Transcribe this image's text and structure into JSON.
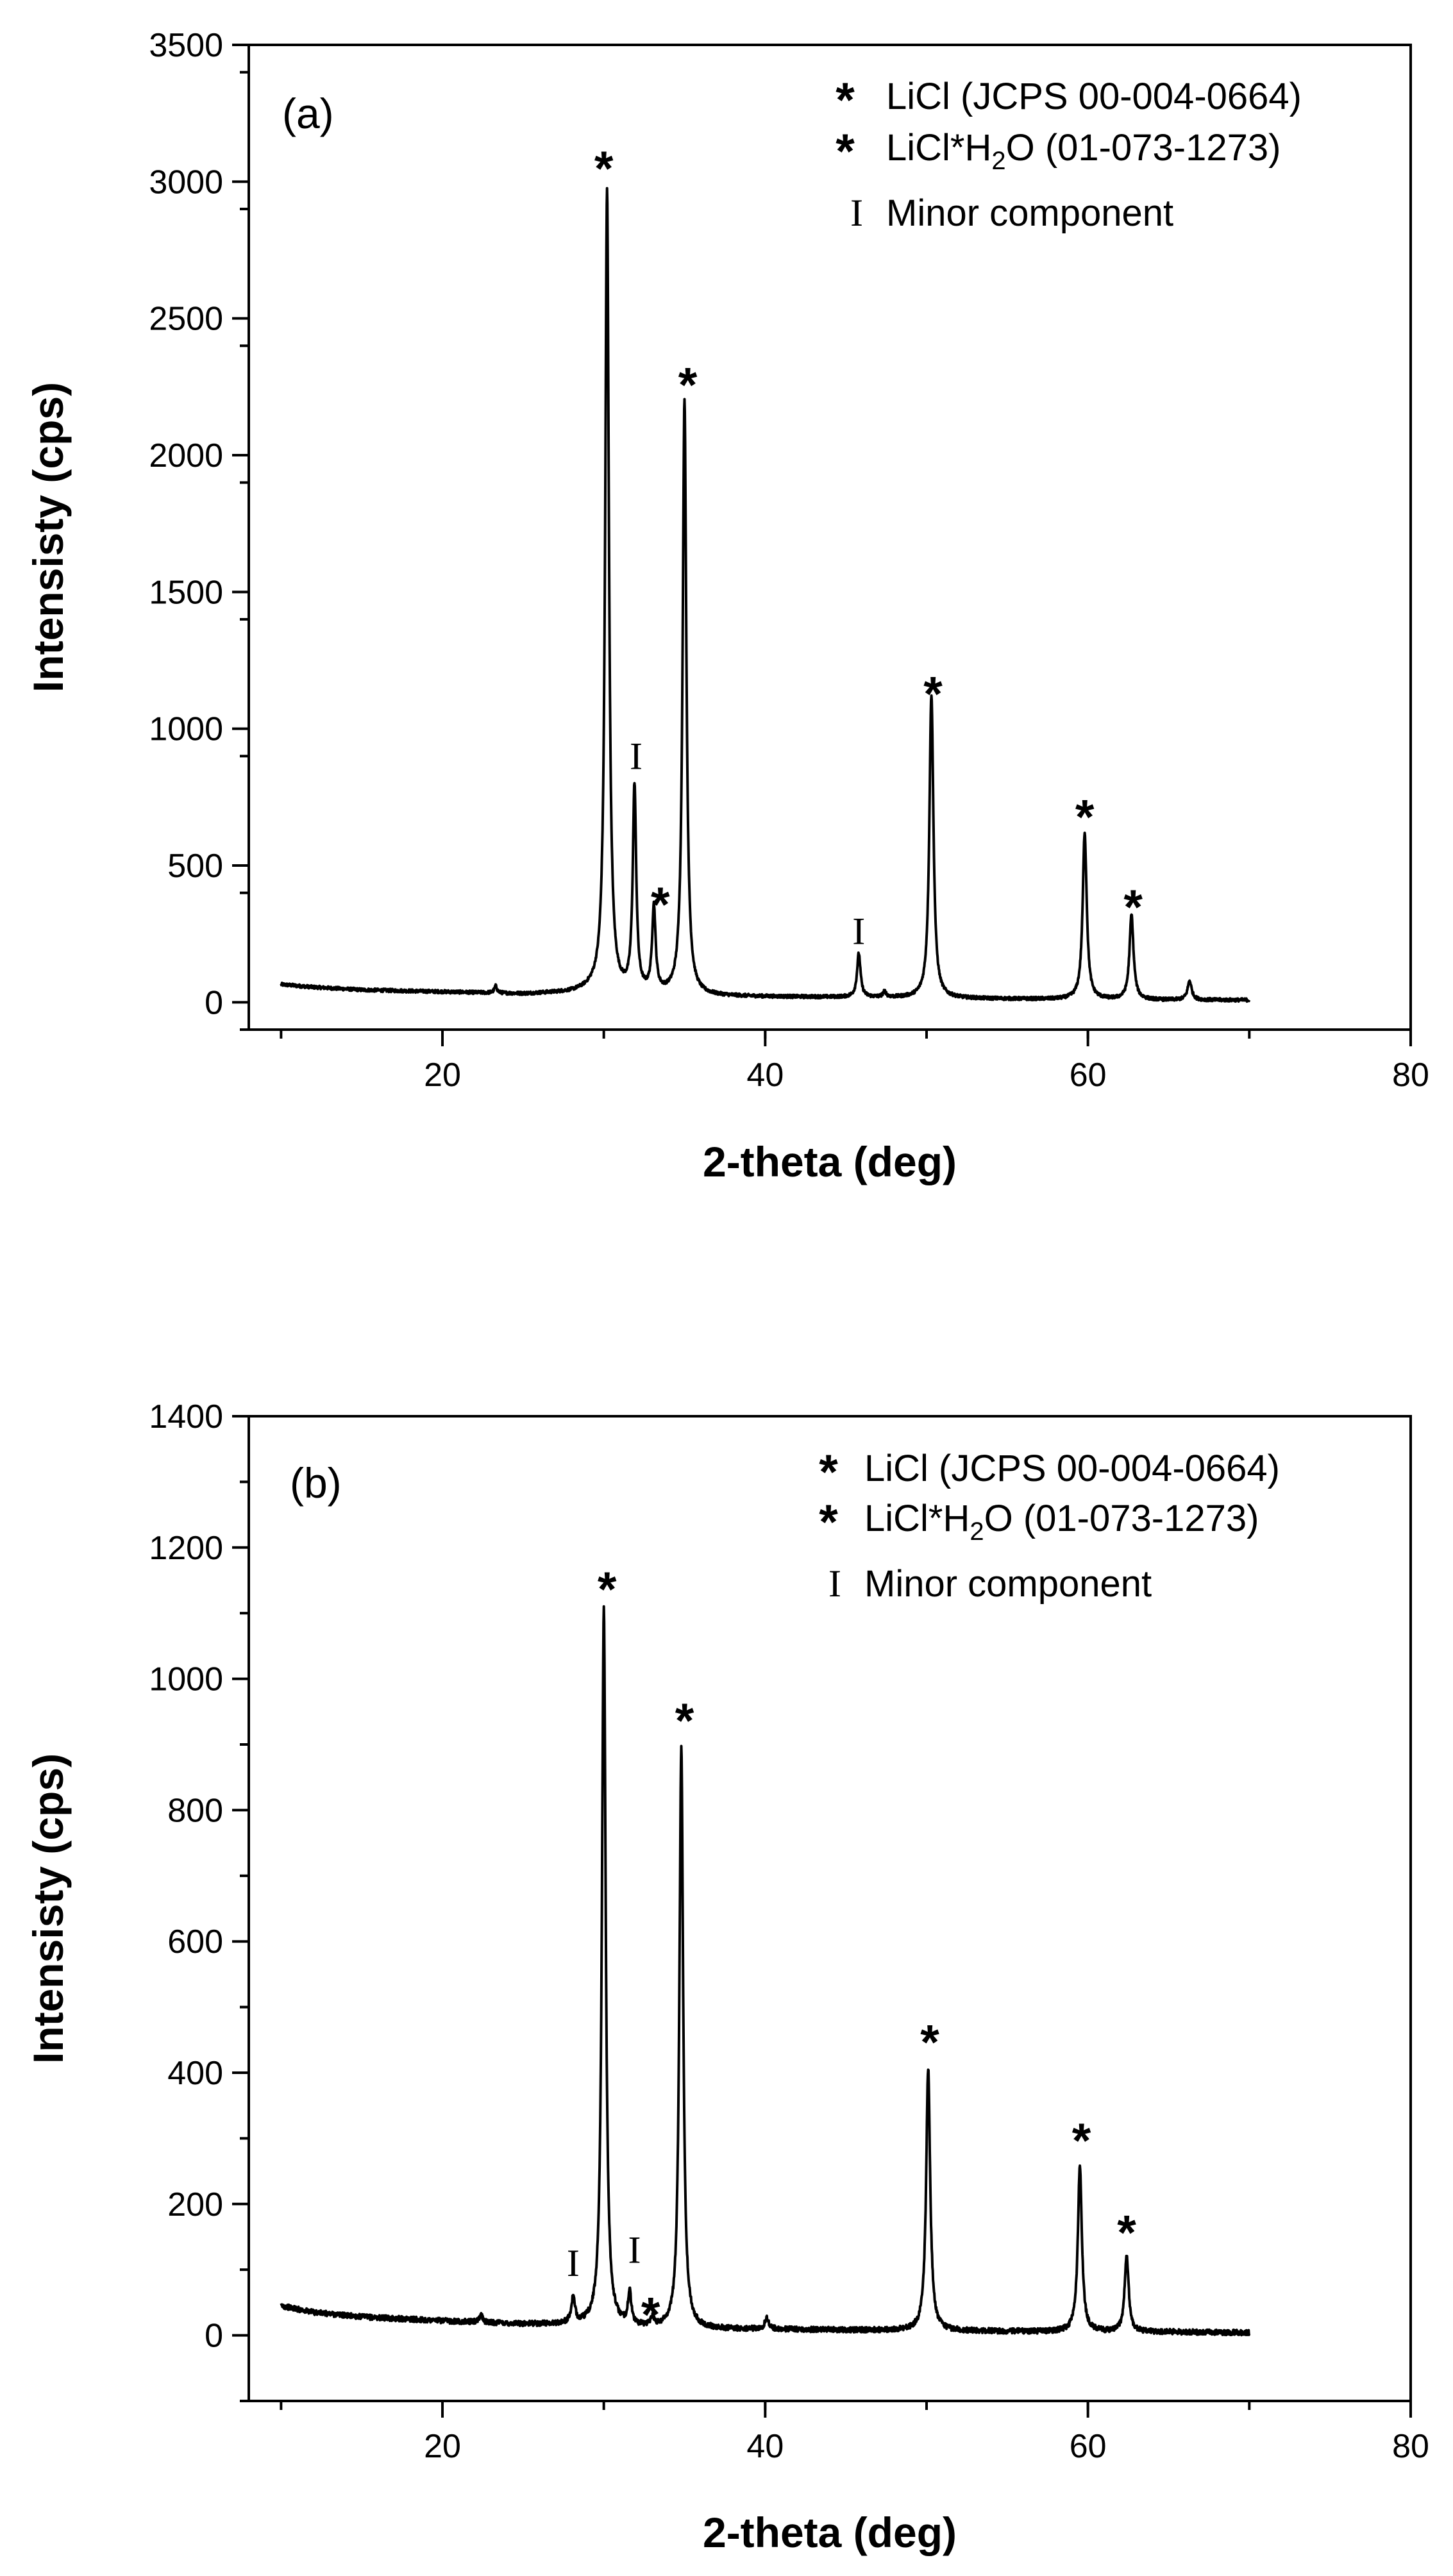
{
  "chart_data": [
    {
      "type": "line",
      "panel_label": "(a)",
      "xlabel": "2-theta (deg)",
      "ylabel": "Intensisty (cps)",
      "xlim": [
        8,
        80
      ],
      "ylim": [
        -100,
        3500
      ],
      "x_ticks": [
        20,
        40,
        60,
        80
      ],
      "y_ticks": [
        0,
        500,
        1000,
        1500,
        2000,
        2500,
        3000,
        3500
      ],
      "legend": {
        "position": "top-right",
        "entries": [
          {
            "marker": "*",
            "color": "#1a1aff",
            "label": "LiCl (JCPS 00-004-0664)"
          },
          {
            "marker": "*",
            "color": "#1a8a1a",
            "label_pre": "LiCl*H",
            "label_sub": "2",
            "label_post": "O (01-073-1273)"
          },
          {
            "marker": "I",
            "color": "#000000",
            "label": "Minor component"
          }
        ]
      },
      "baseline": [
        [
          10,
          65
        ],
        [
          12,
          55
        ],
        [
          15,
          45
        ],
        [
          20,
          38
        ],
        [
          25,
          30
        ],
        [
          28,
          35
        ],
        [
          29.5,
          45
        ],
        [
          31,
          30
        ],
        [
          36,
          22
        ],
        [
          40,
          20
        ],
        [
          45,
          18
        ],
        [
          50,
          15
        ],
        [
          55,
          12
        ],
        [
          60,
          10
        ],
        [
          65,
          8
        ],
        [
          70,
          8
        ]
      ],
      "peaks": [
        {
          "x": 23.3,
          "y": 25,
          "w": 0.1
        },
        {
          "x": 30.2,
          "y": 2930,
          "w": 0.14
        },
        {
          "x": 31.9,
          "y": 750,
          "w": 0.13
        },
        {
          "x": 33.1,
          "y": 310,
          "w": 0.13
        },
        {
          "x": 35.0,
          "y": 2180,
          "w": 0.14
        },
        {
          "x": 45.8,
          "y": 160,
          "w": 0.13
        },
        {
          "x": 47.4,
          "y": 20,
          "w": 0.12
        },
        {
          "x": 50.3,
          "y": 1110,
          "w": 0.15
        },
        {
          "x": 59.8,
          "y": 610,
          "w": 0.15
        },
        {
          "x": 62.7,
          "y": 310,
          "w": 0.15
        },
        {
          "x": 66.3,
          "y": 70,
          "w": 0.15
        }
      ],
      "noise": 6,
      "annotations": [
        {
          "kind": "licl",
          "x": 30.0,
          "y": 3080
        },
        {
          "kind": "licl",
          "x": 35.2,
          "y": 2290
        },
        {
          "kind": "licl",
          "x": 50.4,
          "y": 1160
        },
        {
          "kind": "licl",
          "x": 59.8,
          "y": 710
        },
        {
          "kind": "licl",
          "x": 62.8,
          "y": 380
        },
        {
          "kind": "hydrate",
          "x": 33.5,
          "y": 390
        },
        {
          "kind": "minor",
          "x": 32.0,
          "y": 900
        },
        {
          "kind": "minor",
          "x": 45.8,
          "y": 260
        }
      ]
    },
    {
      "type": "line",
      "panel_label": "(b)",
      "xlabel": "2-theta (deg)",
      "ylabel": "Intensisty (cps)",
      "xlim": [
        8,
        80
      ],
      "ylim": [
        -100,
        1400
      ],
      "x_ticks": [
        20,
        40,
        60,
        80
      ],
      "y_ticks": [
        0,
        200,
        400,
        600,
        800,
        1000,
        1200,
        1400
      ],
      "legend": {
        "position": "top-right",
        "entries": [
          {
            "marker": "*",
            "color": "#1a1aff",
            "label": "LiCl (JCPS 00-004-0664)"
          },
          {
            "marker": "*",
            "color": "#1a8a1a",
            "label_pre": "LiCl*H",
            "label_sub": "2",
            "label_post": "O (01-073-1273)"
          },
          {
            "marker": "I",
            "color": "#000000",
            "label": "Minor component"
          }
        ]
      },
      "baseline": [
        [
          10,
          45
        ],
        [
          12,
          35
        ],
        [
          15,
          28
        ],
        [
          20,
          22
        ],
        [
          25,
          17
        ],
        [
          28,
          16
        ],
        [
          30,
          12
        ],
        [
          35,
          9
        ],
        [
          40,
          9
        ],
        [
          45,
          8
        ],
        [
          50,
          7
        ],
        [
          55,
          6
        ],
        [
          60,
          5
        ],
        [
          65,
          5
        ],
        [
          70,
          4
        ]
      ],
      "peaks": [
        {
          "x": 22.4,
          "y": 12,
          "w": 0.1
        },
        {
          "x": 28.1,
          "y": 38,
          "w": 0.13
        },
        {
          "x": 30.0,
          "y": 1095,
          "w": 0.14
        },
        {
          "x": 31.6,
          "y": 50,
          "w": 0.12
        },
        {
          "x": 33.0,
          "y": 14,
          "w": 0.12
        },
        {
          "x": 34.8,
          "y": 885,
          "w": 0.14
        },
        {
          "x": 40.1,
          "y": 16,
          "w": 0.15
        },
        {
          "x": 50.1,
          "y": 400,
          "w": 0.15
        },
        {
          "x": 59.5,
          "y": 255,
          "w": 0.15
        },
        {
          "x": 62.4,
          "y": 115,
          "w": 0.15
        }
      ],
      "noise": 4,
      "annotations": [
        {
          "kind": "licl",
          "x": 30.2,
          "y": 1150
        },
        {
          "kind": "licl",
          "x": 35.0,
          "y": 950
        },
        {
          "kind": "licl",
          "x": 50.2,
          "y": 460
        },
        {
          "kind": "licl",
          "x": 59.6,
          "y": 310
        },
        {
          "kind": "licl",
          "x": 62.4,
          "y": 170
        },
        {
          "kind": "hydrate",
          "x": 32.9,
          "y": 45
        },
        {
          "kind": "minor",
          "x": 28.1,
          "y": 110
        },
        {
          "kind": "minor",
          "x": 31.9,
          "y": 130
        }
      ]
    }
  ]
}
